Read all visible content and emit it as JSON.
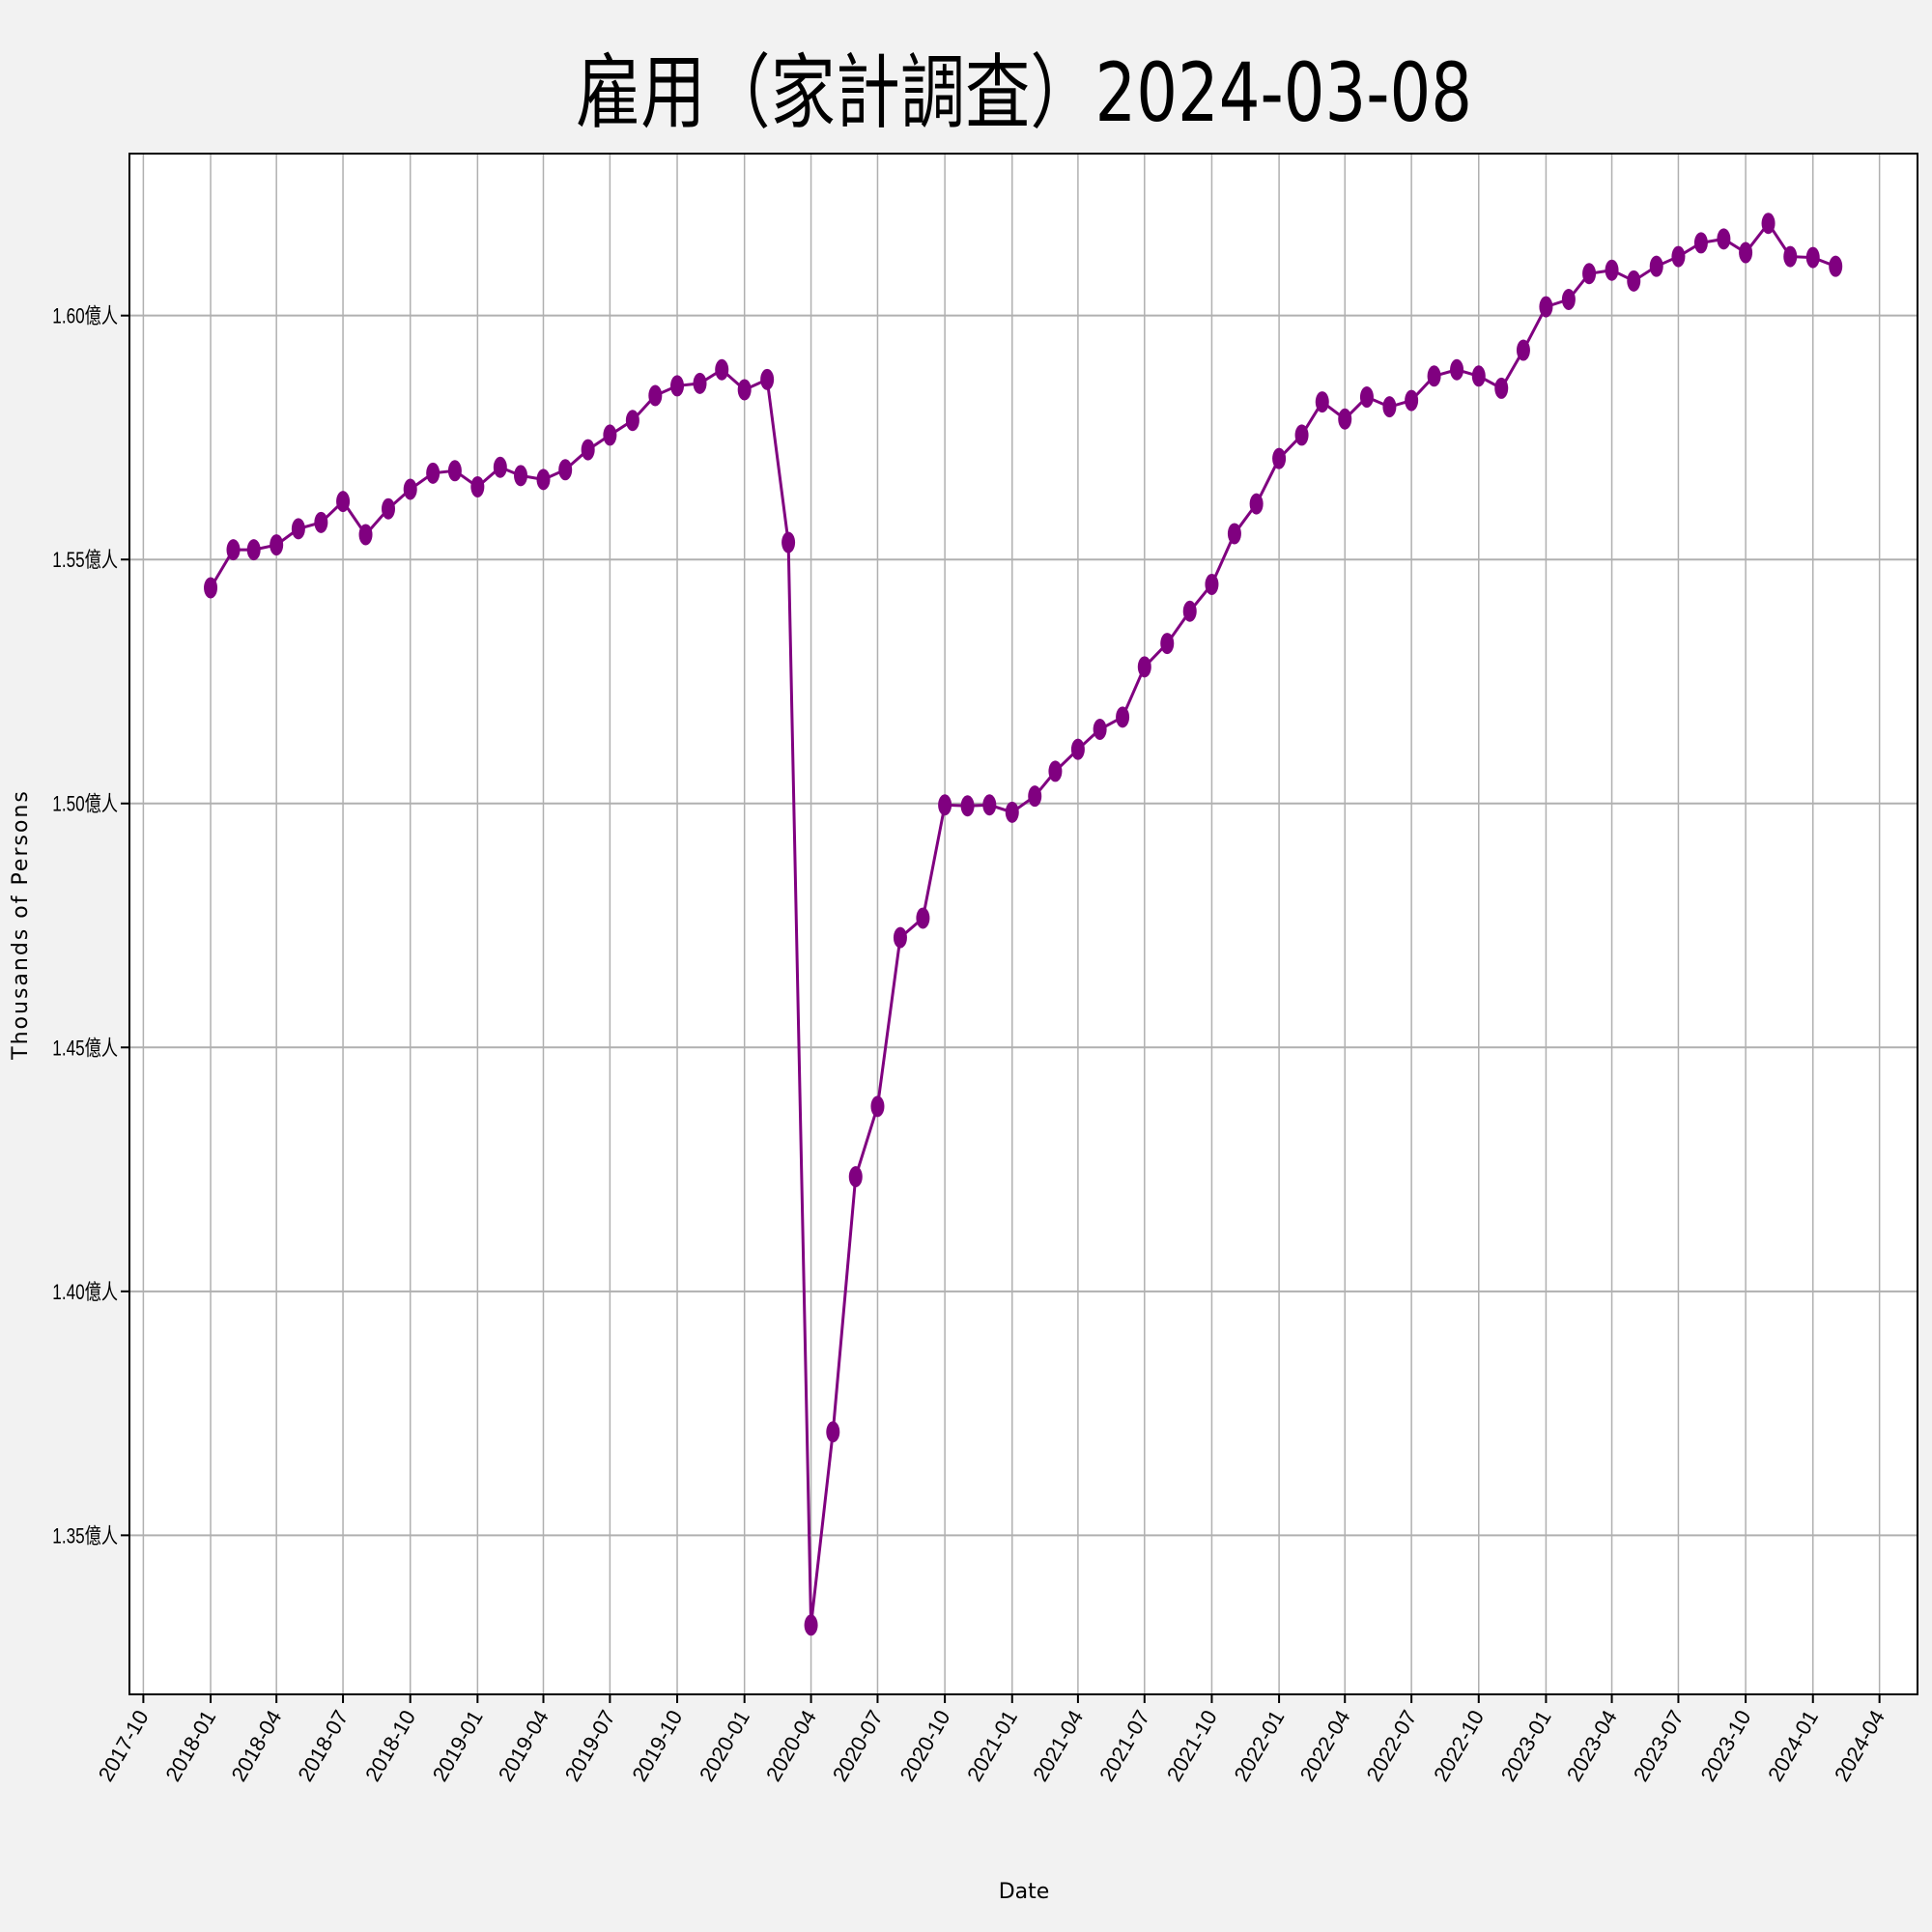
{
  "chart_data": {
    "type": "line",
    "title": "雇用（家計調査）2024-03-08",
    "xlabel": "Date",
    "ylabel": "Thousands of Persons",
    "grid": true,
    "line_color": "#800080",
    "marker": "circle",
    "xlim": [
      "2017-09-12",
      "2024-05-23"
    ],
    "ylim": [
      1.3174,
      1.6332
    ],
    "x_tick_labels": [
      "2017-10",
      "2018-01",
      "2018-04",
      "2018-07",
      "2018-10",
      "2019-01",
      "2019-04",
      "2019-07",
      "2019-10",
      "2020-01",
      "2020-04",
      "2020-07",
      "2020-10",
      "2021-01",
      "2021-04",
      "2021-07",
      "2021-10",
      "2022-01",
      "2022-04",
      "2022-07",
      "2022-10",
      "2023-01",
      "2023-04",
      "2023-07",
      "2023-10",
      "2024-01",
      "2024-04"
    ],
    "y_ticks": [
      1.35,
      1.4,
      1.45,
      1.5,
      1.55,
      1.6
    ],
    "y_tick_labels": [
      "1.35億人",
      "1.40億人",
      "1.45億人",
      "1.50億人",
      "1.55億人",
      "1.60億人"
    ],
    "x": [
      "2018-01",
      "2018-02",
      "2018-03",
      "2018-04",
      "2018-05",
      "2018-06",
      "2018-07",
      "2018-08",
      "2018-09",
      "2018-10",
      "2018-11",
      "2018-12",
      "2019-01",
      "2019-02",
      "2019-03",
      "2019-04",
      "2019-05",
      "2019-06",
      "2019-07",
      "2019-08",
      "2019-09",
      "2019-10",
      "2019-11",
      "2019-12",
      "2020-01",
      "2020-02",
      "2020-03",
      "2020-04",
      "2020-05",
      "2020-06",
      "2020-07",
      "2020-08",
      "2020-09",
      "2020-10",
      "2020-11",
      "2020-12",
      "2021-01",
      "2021-02",
      "2021-03",
      "2021-04",
      "2021-05",
      "2021-06",
      "2021-07",
      "2021-08",
      "2021-09",
      "2021-10",
      "2021-11",
      "2021-12",
      "2022-01",
      "2022-02",
      "2022-03",
      "2022-04",
      "2022-05",
      "2022-06",
      "2022-07",
      "2022-08",
      "2022-09",
      "2022-10",
      "2022-11",
      "2022-12",
      "2023-01",
      "2023-02",
      "2023-03",
      "2023-04",
      "2023-05",
      "2023-06",
      "2023-07",
      "2023-08",
      "2023-09",
      "2023-10",
      "2023-11",
      "2023-12",
      "2024-01",
      "2024-02"
    ],
    "y": [
      1.5442,
      1.552,
      1.552,
      1.553,
      1.5563,
      1.5576,
      1.5619,
      1.5551,
      1.5604,
      1.5644,
      1.5677,
      1.5682,
      1.5649,
      1.5689,
      1.5672,
      1.5664,
      1.5684,
      1.5725,
      1.5755,
      1.5785,
      1.5836,
      1.5856,
      1.5861,
      1.5889,
      1.5848,
      1.5869,
      1.5535,
      1.3316,
      1.3712,
      1.4235,
      1.4379,
      1.4725,
      1.4765,
      1.4997,
      1.4995,
      1.4997,
      1.4982,
      1.5015,
      1.5066,
      1.5111,
      1.5152,
      1.5177,
      1.528,
      1.5328,
      1.5394,
      1.5449,
      1.5553,
      1.5614,
      1.5707,
      1.5755,
      1.5823,
      1.5788,
      1.5833,
      1.5813,
      1.5826,
      1.5876,
      1.5889,
      1.5876,
      1.5851,
      1.5929,
      1.6018,
      1.6033,
      1.6086,
      1.6093,
      1.6071,
      1.6101,
      1.6121,
      1.6149,
      1.6157,
      1.6129,
      1.6189,
      1.6121,
      1.6119,
      1.6101
    ]
  }
}
